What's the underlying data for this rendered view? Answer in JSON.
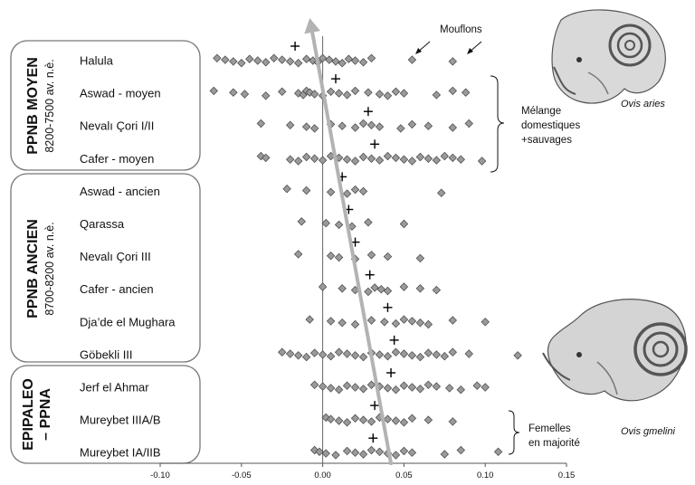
{
  "chart_data": {
    "type": "scatter",
    "xlim": [
      -0.1,
      0.15
    ],
    "x_ticks": [
      "-0.10",
      "-0.05",
      "0.00",
      "0.05",
      "0.10",
      "0.15"
    ],
    "x_tick_values": [
      -0.1,
      -0.05,
      0.0,
      0.05,
      0.1,
      0.15
    ],
    "groups": [
      {
        "title": "PPNB MOYEN",
        "subtitle": "8200-7500 av. n.è."
      },
      {
        "title": "PPNB ANCIEN",
        "subtitle": "8700-8200 av. n.è."
      },
      {
        "title": "EPIPALEO",
        "title2": "– PPNA"
      }
    ],
    "sites": [
      {
        "name": "Halula",
        "mean": -0.017,
        "values": [
          -0.065,
          -0.06,
          -0.055,
          -0.05,
          -0.045,
          -0.04,
          -0.035,
          -0.03,
          -0.025,
          -0.02,
          -0.015,
          -0.01,
          -0.006,
          -0.003,
          0.0,
          0.004,
          0.008,
          0.012,
          0.016,
          0.02,
          0.025,
          0.03,
          0.055,
          0.08
        ]
      },
      {
        "name": "Aswad - moyen",
        "mean": 0.008,
        "values": [
          -0.067,
          -0.055,
          -0.048,
          -0.035,
          -0.025,
          -0.015,
          -0.012,
          -0.01,
          -0.008,
          -0.005,
          0.0,
          0.005,
          0.01,
          0.015,
          0.02,
          0.028,
          0.035,
          0.04,
          0.045,
          0.05,
          0.07,
          0.08,
          0.088
        ]
      },
      {
        "name": "Nevalı Çori I/II",
        "mean": 0.028,
        "values": [
          -0.038,
          -0.02,
          -0.01,
          -0.005,
          0.005,
          0.012,
          0.02,
          0.025,
          0.03,
          0.035,
          0.048,
          0.055,
          0.065,
          0.08,
          0.09
        ]
      },
      {
        "name": "Cafer - moyen",
        "mean": 0.032,
        "values": [
          -0.038,
          -0.035,
          -0.02,
          -0.015,
          -0.01,
          -0.005,
          0.0,
          0.005,
          0.01,
          0.015,
          0.02,
          0.025,
          0.03,
          0.035,
          0.04,
          0.045,
          0.05,
          0.055,
          0.06,
          0.065,
          0.07,
          0.075,
          0.08,
          0.085,
          0.098
        ]
      },
      {
        "name": "Aswad - ancien",
        "mean": 0.012,
        "values": [
          -0.022,
          -0.01,
          0.005,
          0.015,
          0.02,
          0.025,
          0.073
        ]
      },
      {
        "name": "Qarassa",
        "mean": 0.016,
        "values": [
          -0.013,
          0.002,
          0.01,
          0.018,
          0.028,
          0.05
        ]
      },
      {
        "name": "Nevalı Çori III",
        "mean": 0.02,
        "values": [
          -0.015,
          0.005,
          0.01,
          0.02,
          0.03,
          0.04,
          0.06
        ]
      },
      {
        "name": "Cafer - ancien",
        "mean": 0.029,
        "values": [
          0.0,
          0.012,
          0.02,
          0.028,
          0.032,
          0.036,
          0.04,
          0.05,
          0.06,
          0.07
        ]
      },
      {
        "name": "Dja’de el Mughara",
        "mean": 0.04,
        "values": [
          -0.008,
          0.005,
          0.012,
          0.02,
          0.03,
          0.038,
          0.045,
          0.05,
          0.055,
          0.06,
          0.065,
          0.08,
          0.1
        ]
      },
      {
        "name": "Göbekli III",
        "mean": 0.044,
        "values": [
          -0.025,
          -0.02,
          -0.015,
          -0.01,
          -0.005,
          0.0,
          0.005,
          0.01,
          0.015,
          0.02,
          0.025,
          0.03,
          0.035,
          0.04,
          0.045,
          0.05,
          0.055,
          0.06,
          0.065,
          0.07,
          0.075,
          0.08,
          0.09,
          0.12,
          0.143
        ]
      },
      {
        "name": "Jerf el Ahmar",
        "mean": 0.042,
        "values": [
          -0.005,
          0.0,
          0.005,
          0.01,
          0.015,
          0.02,
          0.025,
          0.03,
          0.035,
          0.04,
          0.045,
          0.05,
          0.055,
          0.06,
          0.065,
          0.07,
          0.078,
          0.085,
          0.095,
          0.1
        ]
      },
      {
        "name": "Mureybet IIIA/B",
        "mean": 0.032,
        "values": [
          0.002,
          0.005,
          0.01,
          0.015,
          0.02,
          0.025,
          0.03,
          0.035,
          0.04,
          0.045,
          0.05,
          0.055,
          0.065,
          0.08
        ]
      },
      {
        "name": "Mureybet IA/IIB",
        "mean": 0.031,
        "values": [
          -0.005,
          -0.002,
          0.002,
          0.008,
          0.015,
          0.02,
          0.025,
          0.03,
          0.035,
          0.04,
          0.045,
          0.05,
          0.055,
          0.075,
          0.085,
          0.108
        ]
      }
    ],
    "trend_arrow": {
      "from": {
        "x": 0.042,
        "site": "Mureybet IA/IIB"
      },
      "to": {
        "x": -0.008,
        "site": "Halula"
      }
    },
    "annotations": {
      "mouflons": "Mouflons",
      "melange_line1": "Mélange",
      "melange_line2": "domestiques",
      "melange_line3": "+sauvages",
      "femelles_line1": "Femelles",
      "femelles_line2": "en majorité"
    },
    "species": {
      "top": "Ovis aries",
      "bottom": "Ovis gmelini"
    }
  },
  "colors": {
    "dot_fill": "#9a9a9a",
    "arrow": "#b3b3b3",
    "box_stroke": "#777777"
  }
}
